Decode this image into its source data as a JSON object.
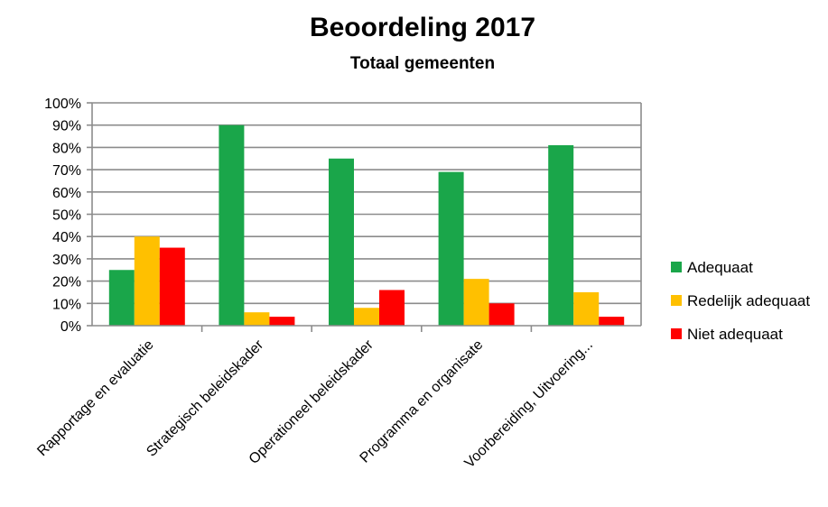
{
  "chart_data": {
    "type": "bar",
    "title": "Beoordeling 2017",
    "subtitle": "Totaal gemeenten",
    "categories": [
      "Rapportage en evaluatie",
      "Strategisch beleidskader",
      "Operationeel beleidskader",
      "Programma en organisate",
      "Voorbereiding, Uitvoering..."
    ],
    "series": [
      {
        "name": "Adequaat",
        "color": "#1aa64a",
        "values": [
          25,
          90,
          75,
          69,
          81
        ]
      },
      {
        "name": "Redelijk adequaat",
        "color": "#ffc000",
        "values": [
          40,
          6,
          8,
          21,
          15
        ]
      },
      {
        "name": "Niet adequaat",
        "color": "#ff0000",
        "values": [
          35,
          4,
          16,
          10,
          4
        ]
      }
    ],
    "ylim": [
      0,
      100
    ],
    "yticks": [
      "0%",
      "10%",
      "20%",
      "30%",
      "40%",
      "50%",
      "60%",
      "70%",
      "80%",
      "90%",
      "100%"
    ],
    "grid": true,
    "legend_position": "right"
  }
}
